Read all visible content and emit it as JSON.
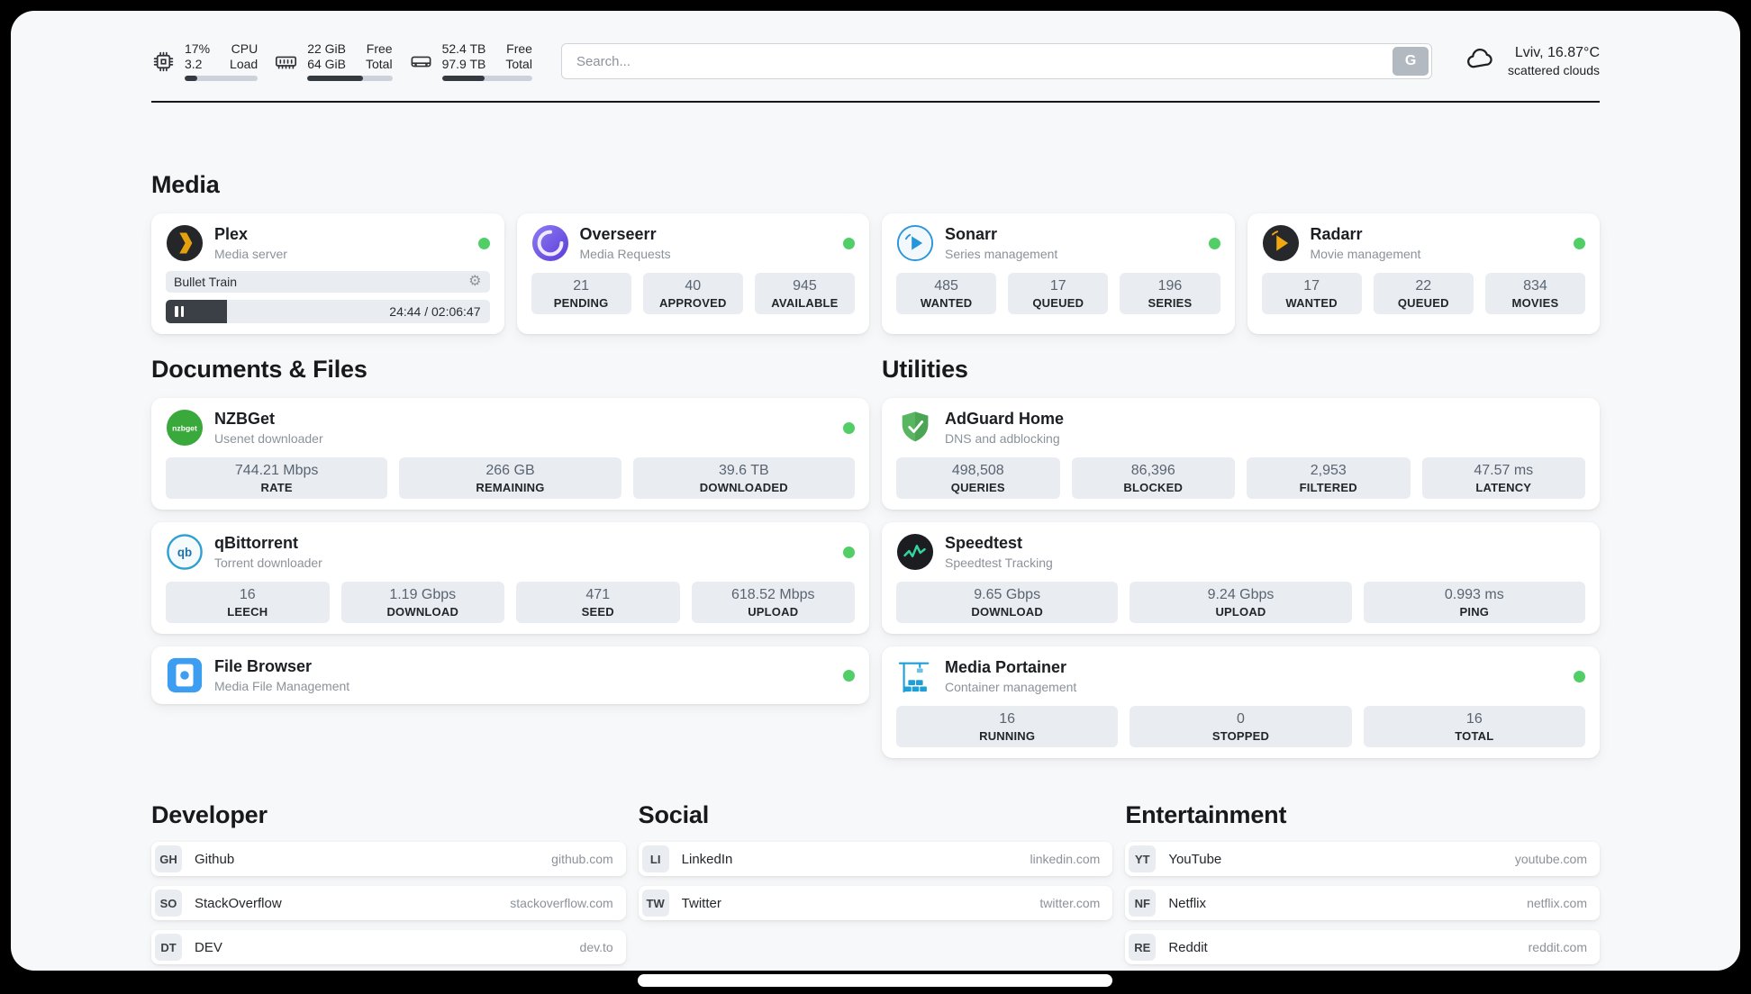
{
  "colors": {
    "status_online": "#51cf66",
    "page_background": "#f7f8fa",
    "stat_background": "#e9edf2",
    "outer_background": "#000000"
  },
  "icons": {
    "gear": "⚙"
  },
  "header": {
    "monitors": [
      {
        "name": "cpu",
        "icon": "cpu-icon",
        "values": [
          "17%",
          "3.2"
        ],
        "labels": [
          "CPU",
          "Load"
        ],
        "progress_pct": 17
      },
      {
        "name": "memory",
        "icon": "ram-icon",
        "values": [
          "22 GiB",
          "64 GiB"
        ],
        "labels": [
          "Free",
          "Total"
        ],
        "progress_pct": 66
      },
      {
        "name": "storage",
        "icon": "disk-icon",
        "values": [
          "52.4 TB",
          "97.9 TB"
        ],
        "labels": [
          "Free",
          "Total"
        ],
        "progress_pct": 47
      }
    ],
    "search": {
      "placeholder": "Search...",
      "button_label": "G"
    },
    "weather": {
      "location": "Lviv, 16.87°C",
      "condition": "scattered clouds"
    }
  },
  "media": {
    "title": "Media",
    "apps": [
      {
        "name": "Plex",
        "subtitle": "Media server",
        "status": "online",
        "player": {
          "title": "Bullet Train",
          "time_display": "24:44 / 02:06:47",
          "progress_pct": 19
        }
      },
      {
        "name": "Overseerr",
        "subtitle": "Media Requests",
        "status": "online",
        "stats": [
          {
            "value": "21",
            "label": "PENDING"
          },
          {
            "value": "40",
            "label": "APPROVED"
          },
          {
            "value": "945",
            "label": "AVAILABLE"
          }
        ]
      },
      {
        "name": "Sonarr",
        "subtitle": "Series management",
        "status": "online",
        "stats": [
          {
            "value": "485",
            "label": "WANTED"
          },
          {
            "value": "17",
            "label": "QUEUED"
          },
          {
            "value": "196",
            "label": "SERIES"
          }
        ]
      },
      {
        "name": "Radarr",
        "subtitle": "Movie management",
        "status": "online",
        "stats": [
          {
            "value": "17",
            "label": "WANTED"
          },
          {
            "value": "22",
            "label": "QUEUED"
          },
          {
            "value": "834",
            "label": "MOVIES"
          }
        ]
      }
    ]
  },
  "documents": {
    "title": "Documents & Files",
    "apps": [
      {
        "name": "NZBGet",
        "subtitle": "Usenet downloader",
        "status": "online",
        "stats": [
          {
            "value": "744.21 Mbps",
            "label": "RATE"
          },
          {
            "value": "266 GB",
            "label": "REMAINING"
          },
          {
            "value": "39.6 TB",
            "label": "DOWNLOADED"
          }
        ]
      },
      {
        "name": "qBittorrent",
        "subtitle": "Torrent downloader",
        "status": "online",
        "stats": [
          {
            "value": "16",
            "label": "LEECH"
          },
          {
            "value": "1.19 Gbps",
            "label": "DOWNLOAD"
          },
          {
            "value": "471",
            "label": "SEED"
          },
          {
            "value": "618.52 Mbps",
            "label": "UPLOAD"
          }
        ]
      },
      {
        "name": "File Browser",
        "subtitle": "Media File Management",
        "status": "online",
        "stats": []
      }
    ]
  },
  "utilities": {
    "title": "Utilities",
    "apps": [
      {
        "name": "AdGuard Home",
        "subtitle": "DNS and adblocking",
        "stats": [
          {
            "value": "498,508",
            "label": "QUERIES"
          },
          {
            "value": "86,396",
            "label": "BLOCKED"
          },
          {
            "value": "2,953",
            "label": "FILTERED"
          },
          {
            "value": "47.57 ms",
            "label": "LATENCY"
          }
        ]
      },
      {
        "name": "Speedtest",
        "subtitle": "Speedtest Tracking",
        "stats": [
          {
            "value": "9.65 Gbps",
            "label": "DOWNLOAD"
          },
          {
            "value": "9.24 Gbps",
            "label": "UPLOAD"
          },
          {
            "value": "0.993 ms",
            "label": "PING"
          }
        ]
      },
      {
        "name": "Media Portainer",
        "subtitle": "Container management",
        "status": "online",
        "stats": [
          {
            "value": "16",
            "label": "RUNNING"
          },
          {
            "value": "0",
            "label": "STOPPED"
          },
          {
            "value": "16",
            "label": "TOTAL"
          }
        ]
      }
    ]
  },
  "bookmarks": [
    {
      "title": "Developer",
      "items": [
        {
          "abbr": "GH",
          "name": "Github",
          "domain": "github.com"
        },
        {
          "abbr": "SO",
          "name": "StackOverflow",
          "domain": "stackoverflow.com"
        },
        {
          "abbr": "DT",
          "name": "DEV",
          "domain": "dev.to"
        }
      ]
    },
    {
      "title": "Social",
      "items": [
        {
          "abbr": "LI",
          "name": "LinkedIn",
          "domain": "linkedin.com"
        },
        {
          "abbr": "TW",
          "name": "Twitter",
          "domain": "twitter.com"
        }
      ]
    },
    {
      "title": "Entertainment",
      "items": [
        {
          "abbr": "YT",
          "name": "YouTube",
          "domain": "youtube.com"
        },
        {
          "abbr": "NF",
          "name": "Netflix",
          "domain": "netflix.com"
        },
        {
          "abbr": "RE",
          "name": "Reddit",
          "domain": "reddit.com"
        }
      ]
    }
  ]
}
